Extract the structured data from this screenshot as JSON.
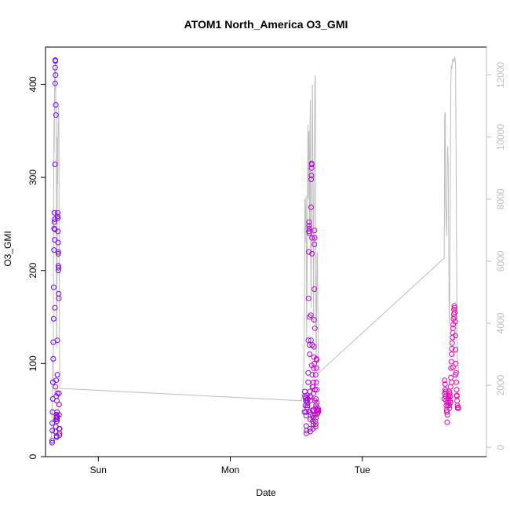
{
  "chart_data": {
    "type": "scatter",
    "title": "ATOM1 North_America O3_GMI",
    "xlabel": "Date",
    "ylabel": "O3_GMI",
    "x_unit": "days since Saturday 00:00",
    "x_ticks": [
      {
        "value": 2,
        "label": "Sun"
      },
      {
        "value": 3,
        "label": "Mon"
      },
      {
        "value": 4,
        "label": "Tue"
      }
    ],
    "xlim": [
      1.6,
      4.94
    ],
    "ylim": [
      0,
      440
    ],
    "y_ticks": [
      0,
      100,
      200,
      300,
      400
    ],
    "secondary_axis": {
      "ylim": [
        -300,
        12900
      ],
      "ticks": [
        0,
        2000,
        4000,
        6000,
        8000,
        10000,
        12000
      ],
      "color": "#bdbdbd"
    },
    "point_color_start": "#6600ff",
    "point_color_end": "#ff00aa",
    "points": [
      [
        1.65,
        15
      ],
      [
        1.65,
        17
      ],
      [
        1.651,
        36
      ],
      [
        1.652,
        28
      ],
      [
        1.653,
        48
      ],
      [
        1.655,
        62
      ],
      [
        1.656,
        80
      ],
      [
        1.658,
        105
      ],
      [
        1.659,
        123
      ],
      [
        1.661,
        148
      ],
      [
        1.662,
        182
      ],
      [
        1.664,
        222
      ],
      [
        1.665,
        245
      ],
      [
        1.667,
        262
      ],
      [
        1.668,
        252
      ],
      [
        1.669,
        233
      ],
      [
        1.67,
        255
      ],
      [
        1.671,
        244
      ],
      [
        1.672,
        314
      ],
      [
        1.673,
        401
      ],
      [
        1.673,
        418
      ],
      [
        1.674,
        426
      ],
      [
        1.675,
        425
      ],
      [
        1.676,
        410
      ],
      [
        1.678,
        378
      ],
      [
        1.679,
        367
      ],
      [
        1.681,
        82
      ],
      [
        1.682,
        65
      ],
      [
        1.683,
        45
      ],
      [
        1.684,
        22
      ],
      [
        1.685,
        21
      ],
      [
        1.686,
        38
      ],
      [
        1.687,
        40
      ],
      [
        1.688,
        48
      ],
      [
        1.689,
        125
      ],
      [
        1.69,
        88
      ],
      [
        1.691,
        258
      ],
      [
        1.692,
        262
      ],
      [
        1.693,
        256
      ],
      [
        1.694,
        242
      ],
      [
        1.695,
        230
      ],
      [
        1.696,
        220
      ],
      [
        1.697,
        218
      ],
      [
        1.697,
        205
      ],
      [
        1.698,
        200
      ],
      [
        1.699,
        203
      ],
      [
        1.7,
        175
      ],
      [
        1.701,
        170
      ],
      [
        1.702,
        68
      ],
      [
        1.703,
        56
      ],
      [
        1.703,
        45
      ],
      [
        1.704,
        30
      ],
      [
        1.705,
        23
      ],
      [
        1.706,
        25
      ],
      [
        1.707,
        30
      ],
      [
        1.675,
        27
      ],
      [
        1.679,
        32
      ],
      [
        1.683,
        42
      ],
      [
        1.686,
        43
      ],
      [
        1.689,
        43
      ],
      [
        1.69,
        68
      ],
      [
        1.676,
        75
      ],
      [
        1.671,
        160
      ],
      [
        1.68,
        40
      ],
      [
        1.682,
        45
      ],
      [
        1.686,
        60
      ],
      [
        3.562,
        48
      ],
      [
        3.564,
        70
      ],
      [
        3.566,
        65
      ],
      [
        3.568,
        55
      ],
      [
        3.57,
        63
      ],
      [
        3.572,
        60
      ],
      [
        3.573,
        48
      ],
      [
        3.574,
        44
      ],
      [
        3.575,
        33
      ],
      [
        3.576,
        25
      ],
      [
        3.577,
        28
      ],
      [
        3.578,
        60
      ],
      [
        3.58,
        66
      ],
      [
        3.582,
        53
      ],
      [
        3.584,
        55
      ],
      [
        3.585,
        58
      ],
      [
        3.587,
        62
      ],
      [
        3.589,
        80
      ],
      [
        3.59,
        90
      ],
      [
        3.591,
        125
      ],
      [
        3.592,
        170
      ],
      [
        3.594,
        220
      ],
      [
        3.595,
        242
      ],
      [
        3.596,
        252
      ],
      [
        3.597,
        248
      ],
      [
        3.598,
        245
      ],
      [
        3.599,
        240
      ],
      [
        3.6,
        120
      ],
      [
        3.601,
        110
      ],
      [
        3.602,
        70
      ],
      [
        3.603,
        48
      ],
      [
        3.604,
        30
      ],
      [
        3.605,
        27
      ],
      [
        3.606,
        40
      ],
      [
        3.607,
        45
      ],
      [
        3.608,
        60
      ],
      [
        3.609,
        64
      ],
      [
        3.61,
        152
      ],
      [
        3.611,
        125
      ],
      [
        3.612,
        268
      ],
      [
        3.613,
        298
      ],
      [
        3.614,
        302
      ],
      [
        3.615,
        310
      ],
      [
        3.616,
        315
      ],
      [
        3.617,
        314
      ],
      [
        3.618,
        235
      ],
      [
        3.619,
        218
      ],
      [
        3.62,
        120
      ],
      [
        3.621,
        88
      ],
      [
        3.622,
        75
      ],
      [
        3.623,
        50
      ],
      [
        3.624,
        44
      ],
      [
        3.625,
        38
      ],
      [
        3.626,
        30
      ],
      [
        3.627,
        35
      ],
      [
        3.628,
        42
      ],
      [
        3.629,
        50
      ],
      [
        3.63,
        68
      ],
      [
        3.631,
        80
      ],
      [
        3.632,
        95
      ],
      [
        3.633,
        107
      ],
      [
        3.634,
        118
      ],
      [
        3.635,
        147
      ],
      [
        3.636,
        180
      ],
      [
        3.637,
        228
      ],
      [
        3.638,
        243
      ],
      [
        3.639,
        235
      ],
      [
        3.64,
        138
      ],
      [
        3.641,
        72
      ],
      [
        3.642,
        60
      ],
      [
        3.643,
        52
      ],
      [
        3.644,
        45
      ],
      [
        3.645,
        38
      ],
      [
        3.646,
        32
      ],
      [
        3.647,
        35
      ],
      [
        3.648,
        42
      ],
      [
        3.649,
        55
      ],
      [
        3.65,
        62
      ],
      [
        3.651,
        80
      ],
      [
        3.652,
        95
      ],
      [
        3.653,
        105
      ],
      [
        3.654,
        104
      ],
      [
        3.655,
        72
      ],
      [
        3.656,
        58
      ],
      [
        3.657,
        50
      ],
      [
        3.658,
        48
      ],
      [
        3.66,
        46
      ],
      [
        3.662,
        50
      ],
      [
        3.664,
        52
      ],
      [
        3.666,
        48
      ],
      [
        3.668,
        50
      ],
      [
        3.6,
        150
      ],
      [
        3.604,
        65
      ],
      [
        3.616,
        98
      ],
      [
        3.626,
        75
      ],
      [
        3.636,
        100
      ],
      [
        3.646,
        88
      ],
      [
        4.62,
        62
      ],
      [
        4.622,
        68
      ],
      [
        4.624,
        82
      ],
      [
        4.626,
        78
      ],
      [
        4.628,
        72
      ],
      [
        4.63,
        65
      ],
      [
        4.632,
        70
      ],
      [
        4.634,
        60
      ],
      [
        4.636,
        55
      ],
      [
        4.638,
        50
      ],
      [
        4.64,
        48
      ],
      [
        4.642,
        37
      ],
      [
        4.644,
        45
      ],
      [
        4.646,
        55
      ],
      [
        4.648,
        60
      ],
      [
        4.65,
        62
      ],
      [
        4.652,
        58
      ],
      [
        4.654,
        64
      ],
      [
        4.656,
        66
      ],
      [
        4.658,
        55
      ],
      [
        4.66,
        52
      ],
      [
        4.662,
        68
      ],
      [
        4.664,
        60
      ],
      [
        4.666,
        65
      ],
      [
        4.668,
        75
      ],
      [
        4.67,
        85
      ],
      [
        4.672,
        95
      ],
      [
        4.674,
        102
      ],
      [
        4.676,
        110
      ],
      [
        4.678,
        116
      ],
      [
        4.68,
        122
      ],
      [
        4.682,
        128
      ],
      [
        4.684,
        133
      ],
      [
        4.686,
        138
      ],
      [
        4.688,
        142
      ],
      [
        4.69,
        148
      ],
      [
        4.692,
        153
      ],
      [
        4.694,
        158
      ],
      [
        4.696,
        162
      ],
      [
        4.698,
        160
      ],
      [
        4.7,
        155
      ],
      [
        4.702,
        145
      ],
      [
        4.704,
        130
      ],
      [
        4.706,
        115
      ],
      [
        4.708,
        100
      ],
      [
        4.71,
        90
      ],
      [
        4.712,
        80
      ],
      [
        4.714,
        72
      ],
      [
        4.716,
        65
      ],
      [
        4.718,
        60
      ],
      [
        4.72,
        55
      ],
      [
        4.722,
        52
      ],
      [
        4.724,
        53
      ],
      [
        4.726,
        52
      ],
      [
        4.658,
        70
      ],
      [
        4.668,
        58
      ],
      [
        4.676,
        80
      ],
      [
        4.686,
        96
      ],
      [
        4.696,
        150
      ],
      [
        4.706,
        88
      ],
      [
        4.716,
        66
      ]
    ],
    "secondary_line": [
      [
        1.64,
        200
      ],
      [
        1.648,
        600
      ],
      [
        1.652,
        1500
      ],
      [
        1.656,
        3000
      ],
      [
        1.658,
        2100
      ],
      [
        1.66,
        4500
      ],
      [
        1.662,
        8000
      ],
      [
        1.664,
        10600
      ],
      [
        1.666,
        9500
      ],
      [
        1.668,
        11000
      ],
      [
        1.67,
        12200
      ],
      [
        1.672,
        11500
      ],
      [
        1.674,
        11800
      ],
      [
        1.676,
        12400
      ],
      [
        1.678,
        10800
      ],
      [
        1.68,
        11200
      ],
      [
        1.682,
        9000
      ],
      [
        1.684,
        3200
      ],
      [
        1.686,
        4000
      ],
      [
        1.688,
        6000
      ],
      [
        1.69,
        10000
      ],
      [
        1.692,
        8500
      ],
      [
        1.694,
        9800
      ],
      [
        1.696,
        10500
      ],
      [
        1.698,
        10400
      ],
      [
        1.7,
        11000
      ],
      [
        1.702,
        9800
      ],
      [
        1.704,
        4000
      ],
      [
        1.708,
        1900
      ],
      [
        3.54,
        1500
      ],
      [
        3.555,
        2200
      ],
      [
        3.56,
        3400
      ],
      [
        3.563,
        5400
      ],
      [
        3.565,
        8000
      ],
      [
        3.567,
        6600
      ],
      [
        3.57,
        7500
      ],
      [
        3.573,
        8100
      ],
      [
        3.575,
        7000
      ],
      [
        3.578,
        3500
      ],
      [
        3.582,
        6000
      ],
      [
        3.585,
        8500
      ],
      [
        3.588,
        10400
      ],
      [
        3.59,
        8000
      ],
      [
        3.592,
        9500
      ],
      [
        3.595,
        10200
      ],
      [
        3.598,
        8500
      ],
      [
        3.6,
        7000
      ],
      [
        3.603,
        10000
      ],
      [
        3.606,
        11200
      ],
      [
        3.609,
        6000
      ],
      [
        3.612,
        4500
      ],
      [
        3.615,
        8500
      ],
      [
        3.618,
        9000
      ],
      [
        3.62,
        10800
      ],
      [
        3.622,
        11700
      ],
      [
        3.625,
        9500
      ],
      [
        3.628,
        6500
      ],
      [
        3.631,
        4000
      ],
      [
        3.634,
        8000
      ],
      [
        3.637,
        10000
      ],
      [
        3.64,
        11700
      ],
      [
        3.643,
        12000
      ],
      [
        3.646,
        9000
      ],
      [
        3.648,
        3500
      ],
      [
        3.651,
        2900
      ],
      [
        3.654,
        5000
      ],
      [
        3.657,
        6200
      ],
      [
        3.66,
        6300
      ],
      [
        3.663,
        4500
      ],
      [
        3.666,
        3000
      ],
      [
        3.67,
        2400
      ],
      [
        4.62,
        6100
      ],
      [
        4.624,
        10700
      ],
      [
        4.628,
        10800
      ],
      [
        4.63,
        7800
      ],
      [
        4.634,
        7500
      ],
      [
        4.638,
        6800
      ],
      [
        4.642,
        9000
      ],
      [
        4.646,
        9700
      ],
      [
        4.65,
        9200
      ],
      [
        4.654,
        6500
      ],
      [
        4.658,
        4000
      ],
      [
        4.662,
        4800
      ],
      [
        4.666,
        8000
      ],
      [
        4.67,
        11700
      ],
      [
        4.674,
        12300
      ],
      [
        4.678,
        12200
      ],
      [
        4.682,
        12500
      ],
      [
        4.686,
        12500
      ],
      [
        4.69,
        12500
      ],
      [
        4.694,
        12400
      ],
      [
        4.698,
        12600
      ],
      [
        4.702,
        12500
      ],
      [
        4.706,
        12400
      ],
      [
        4.71,
        9500
      ],
      [
        4.714,
        6000
      ],
      [
        4.718,
        3200
      ],
      [
        4.722,
        2700
      ],
      [
        4.726,
        2600
      ],
      [
        4.73,
        2400
      ]
    ]
  }
}
